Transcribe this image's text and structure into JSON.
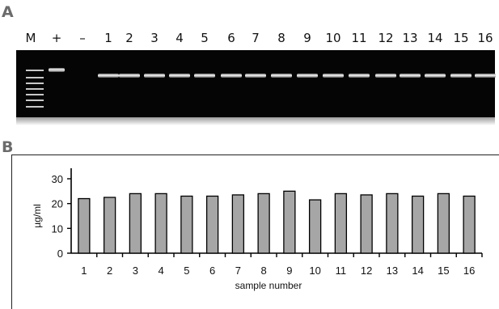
{
  "panel_a": {
    "letter": "A",
    "lanes": [
      "M",
      "+",
      "–",
      "1",
      "2",
      "3",
      "4",
      "5",
      "6",
      "7",
      "8",
      "9",
      "10",
      "11",
      "12",
      "13",
      "14",
      "15",
      "16"
    ]
  },
  "panel_b": {
    "letter": "B"
  },
  "chart_data": {
    "type": "bar",
    "categories": [
      "1",
      "2",
      "3",
      "4",
      "5",
      "6",
      "7",
      "8",
      "9",
      "10",
      "11",
      "12",
      "13",
      "14",
      "15",
      "16"
    ],
    "values": [
      22,
      22.5,
      24,
      24,
      23,
      23,
      23.5,
      24,
      25,
      21.5,
      24,
      23.5,
      24,
      23,
      24,
      23
    ],
    "xlabel": "sample number",
    "ylabel": "µg/ml",
    "ylim": [
      0,
      30
    ],
    "yticks": [
      0,
      10,
      20,
      30
    ],
    "bar_color": "#a6a6a6",
    "grid": false
  }
}
